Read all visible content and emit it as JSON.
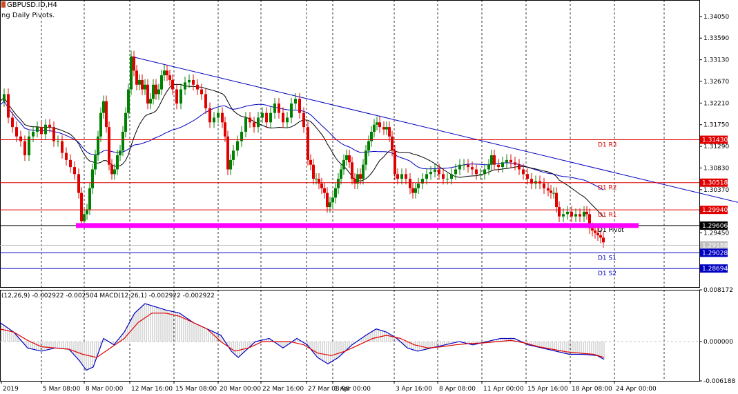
{
  "header": {
    "symbol": "GBPUSD.ID,H4",
    "indicator": "ng Daily Pivots."
  },
  "chart_data": [
    {
      "type": "candlestick",
      "symbol": "GBPUSD.ID,H4",
      "ylim": [
        1.283,
        1.344
      ],
      "y_ticks": [
        "1.34050",
        "1.33590",
        "1.33130",
        "1.32670",
        "1.32210",
        "1.31750",
        "1.31290",
        "1.30830",
        "1.30370",
        "1.29450"
      ],
      "x_ticks": [
        "2019",
        "5 Mar 08:00",
        "8 Mar 00:00",
        "12 Mar 16:00",
        "15 Mar 08:00",
        "20 Mar 00:00",
        "22 Mar 16:00",
        "27 Mar 08:00",
        "1 Apr 00:00",
        "3 Apr 16:00",
        "8 Apr 08:00",
        "11 Apr 00:00",
        "15 Apr 16:00",
        "18 Apr 08:00",
        "24 Apr 00:00"
      ],
      "close_path": [
        [
          0,
          1.3225
        ],
        [
          6,
          1.324
        ],
        [
          12,
          1.319
        ],
        [
          18,
          1.317
        ],
        [
          24,
          1.315
        ],
        [
          30,
          1.314
        ],
        [
          36,
          1.311
        ],
        [
          42,
          1.315
        ],
        [
          48,
          1.316
        ],
        [
          54,
          1.317
        ],
        [
          60,
          1.3155
        ],
        [
          66,
          1.3175
        ],
        [
          72,
          1.317
        ],
        [
          78,
          1.314
        ],
        [
          84,
          1.314
        ],
        [
          90,
          1.3115
        ],
        [
          96,
          1.31
        ],
        [
          102,
          1.3085
        ],
        [
          108,
          1.307
        ],
        [
          114,
          1.303
        ],
        [
          118,
          1.297
        ],
        [
          122,
          1.2985
        ],
        [
          126,
          1.2995
        ],
        [
          130,
          1.304
        ],
        [
          134,
          1.308
        ],
        [
          138,
          1.311
        ],
        [
          142,
          1.315
        ],
        [
          146,
          1.32
        ],
        [
          150,
          1.3225
        ],
        [
          154,
          1.317
        ],
        [
          158,
          1.309
        ],
        [
          162,
          1.307
        ],
        [
          166,
          1.308
        ],
        [
          170,
          1.311
        ],
        [
          174,
          1.312
        ],
        [
          178,
          1.316
        ],
        [
          182,
          1.32
        ],
        [
          186,
          1.325
        ],
        [
          190,
          1.332
        ],
        [
          194,
          1.329
        ],
        [
          198,
          1.326
        ],
        [
          202,
          1.327
        ],
        [
          206,
          1.325
        ],
        [
          210,
          1.326
        ],
        [
          214,
          1.322
        ],
        [
          218,
          1.323
        ],
        [
          222,
          1.326
        ],
        [
          226,
          1.324
        ],
        [
          230,
          1.325
        ],
        [
          234,
          1.328
        ],
        [
          238,
          1.329
        ],
        [
          242,
          1.328
        ],
        [
          246,
          1.327
        ],
        [
          250,
          1.325
        ],
        [
          256,
          1.322
        ],
        [
          262,
          1.325
        ],
        [
          268,
          1.3265
        ],
        [
          274,
          1.327
        ],
        [
          280,
          1.326
        ],
        [
          286,
          1.325
        ],
        [
          292,
          1.324
        ],
        [
          298,
          1.321
        ],
        [
          304,
          1.318
        ],
        [
          310,
          1.319
        ],
        [
          316,
          1.32
        ],
        [
          322,
          1.318
        ],
        [
          326,
          1.315
        ],
        [
          330,
          1.308
        ],
        [
          334,
          1.31
        ],
        [
          338,
          1.312
        ],
        [
          344,
          1.314
        ],
        [
          350,
          1.316
        ],
        [
          356,
          1.319
        ],
        [
          362,
          1.318
        ],
        [
          368,
          1.317
        ],
        [
          374,
          1.319
        ],
        [
          380,
          1.32
        ],
        [
          386,
          1.318
        ],
        [
          392,
          1.32
        ],
        [
          398,
          1.322
        ],
        [
          404,
          1.32
        ],
        [
          410,
          1.318
        ],
        [
          416,
          1.319
        ],
        [
          422,
          1.322
        ],
        [
          428,
          1.323
        ],
        [
          434,
          1.32
        ],
        [
          440,
          1.317
        ],
        [
          446,
          1.31
        ],
        [
          450,
          1.309
        ],
        [
          454,
          1.306
        ],
        [
          458,
          1.306
        ],
        [
          462,
          1.305
        ],
        [
          466,
          1.304
        ],
        [
          470,
          1.303
        ],
        [
          474,
          1.3
        ],
        [
          478,
          1.301
        ],
        [
          482,
          1.302
        ],
        [
          486,
          1.304
        ],
        [
          490,
          1.306
        ],
        [
          494,
          1.308
        ],
        [
          498,
          1.31
        ],
        [
          502,
          1.311
        ],
        [
          506,
          1.3095
        ],
        [
          510,
          1.306
        ],
        [
          514,
          1.305
        ],
        [
          518,
          1.307
        ],
        [
          522,
          1.306
        ],
        [
          526,
          1.309
        ],
        [
          530,
          1.312
        ],
        [
          534,
          1.314
        ],
        [
          538,
          1.316
        ],
        [
          542,
          1.3175
        ],
        [
          546,
          1.318
        ],
        [
          550,
          1.317
        ],
        [
          556,
          1.3165
        ],
        [
          560,
          1.317
        ],
        [
          564,
          1.315
        ],
        [
          568,
          1.312
        ],
        [
          572,
          1.307
        ],
        [
          576,
          1.306
        ],
        [
          582,
          1.307
        ],
        [
          588,
          1.306
        ],
        [
          594,
          1.304
        ],
        [
          598,
          1.303
        ],
        [
          602,
          1.304
        ],
        [
          606,
          1.305
        ],
        [
          612,
          1.306
        ],
        [
          618,
          1.307
        ],
        [
          624,
          1.3075
        ],
        [
          630,
          1.308
        ],
        [
          636,
          1.307
        ],
        [
          642,
          1.306
        ],
        [
          648,
          1.306
        ],
        [
          654,
          1.307
        ],
        [
          660,
          1.308
        ],
        [
          666,
          1.309
        ],
        [
          672,
          1.309
        ],
        [
          678,
          1.3085
        ],
        [
          684,
          1.308
        ],
        [
          690,
          1.307
        ],
        [
          696,
          1.307
        ],
        [
          702,
          1.308
        ],
        [
          708,
          1.309
        ],
        [
          712,
          1.311
        ],
        [
          716,
          1.309
        ],
        [
          722,
          1.3085
        ],
        [
          728,
          1.3095
        ],
        [
          734,
          1.31
        ],
        [
          740,
          1.3095
        ],
        [
          746,
          1.309
        ],
        [
          752,
          1.308
        ],
        [
          758,
          1.307
        ],
        [
          764,
          1.306
        ],
        [
          770,
          1.305
        ],
        [
          776,
          1.3055
        ],
        [
          782,
          1.305
        ],
        [
          788,
          1.304
        ],
        [
          794,
          1.3035
        ],
        [
          798,
          1.303
        ],
        [
          802,
          1.303
        ],
        [
          806,
          1.3
        ],
        [
          810,
          1.298
        ],
        [
          816,
          1.2985
        ],
        [
          822,
          1.299
        ],
        [
          828,
          1.298
        ],
        [
          834,
          1.2985
        ],
        [
          840,
          1.298
        ],
        [
          846,
          1.299
        ],
        [
          850,
          1.2985
        ],
        [
          854,
          1.2955
        ],
        [
          858,
          1.295
        ],
        [
          862,
          1.2945
        ],
        [
          866,
          1.294
        ],
        [
          870,
          1.2935
        ],
        [
          874,
          1.2925
        ]
      ],
      "h_lines": [
        {
          "name": "D1 R3",
          "value": 1.3143,
          "label": "1.31430",
          "color": "#e00000"
        },
        {
          "name": "D1 R2",
          "value": 1.30518,
          "label": "1.30518",
          "color": "#e00000"
        },
        {
          "name": "D1 R1",
          "value": 1.2994,
          "label": "1.29940",
          "color": "#e00000"
        },
        {
          "name": "D1 Pivot",
          "value": 1.29606,
          "label": "1.29606",
          "color": "#000000"
        },
        {
          "name": "",
          "value": 1.29188,
          "label": "1.29188",
          "color": "#c0c0c0"
        },
        {
          "name": "D1 S1",
          "value": 1.29028,
          "label": "1.29028",
          "color": "#0000c0"
        },
        {
          "name": "D1 S2",
          "value": 1.28694,
          "label": "1.28694",
          "color": "#0000c0"
        }
      ],
      "support_zone": {
        "value": 1.296,
        "color": "#ff00ff"
      },
      "trendline": {
        "from": [
          190,
          1.332
        ],
        "to": [
          1069,
          1.301
        ],
        "color": "#0000c0"
      }
    },
    {
      "type": "macd",
      "title": "(12,26,9) -0.002922 -0.002504 MACD(12,26,1) -0.002922 -0.002922",
      "ylim": [
        -0.006188,
        0.008172
      ],
      "y_ticks": [
        "0.008172",
        "0.000000",
        "-0.006188"
      ],
      "macd": [
        [
          0,
          0.003
        ],
        [
          20,
          0.0015
        ],
        [
          40,
          -0.001
        ],
        [
          60,
          -0.0015
        ],
        [
          80,
          -0.001
        ],
        [
          100,
          -0.0012
        ],
        [
          115,
          -0.003
        ],
        [
          125,
          -0.0045
        ],
        [
          135,
          -0.004
        ],
        [
          150,
          0.0005
        ],
        [
          165,
          -0.0005
        ],
        [
          180,
          0.0015
        ],
        [
          195,
          0.0045
        ],
        [
          210,
          0.006
        ],
        [
          225,
          0.0055
        ],
        [
          240,
          0.005
        ],
        [
          260,
          0.0045
        ],
        [
          280,
          0.003
        ],
        [
          300,
          0.002
        ],
        [
          320,
          0.001
        ],
        [
          335,
          -0.0015
        ],
        [
          345,
          -0.0025
        ],
        [
          355,
          -0.0015
        ],
        [
          370,
          0.0
        ],
        [
          390,
          0.0005
        ],
        [
          410,
          -0.001
        ],
        [
          430,
          0.0005
        ],
        [
          445,
          -0.0005
        ],
        [
          460,
          -0.0025
        ],
        [
          475,
          -0.0035
        ],
        [
          490,
          -0.0025
        ],
        [
          510,
          -0.0005
        ],
        [
          530,
          0.001
        ],
        [
          545,
          0.002
        ],
        [
          560,
          0.0015
        ],
        [
          575,
          0.0005
        ],
        [
          590,
          -0.001
        ],
        [
          605,
          -0.0015
        ],
        [
          625,
          -0.001
        ],
        [
          645,
          -0.0005
        ],
        [
          665,
          0.0
        ],
        [
          685,
          -0.0005
        ],
        [
          705,
          0.0
        ],
        [
          725,
          0.0005
        ],
        [
          745,
          0.0005
        ],
        [
          765,
          -0.0005
        ],
        [
          785,
          -0.001
        ],
        [
          805,
          -0.0015
        ],
        [
          825,
          -0.002
        ],
        [
          845,
          -0.002
        ],
        [
          865,
          -0.0022
        ],
        [
          875,
          -0.0028
        ]
      ],
      "signal": [
        [
          0,
          0.002
        ],
        [
          20,
          0.0015
        ],
        [
          40,
          0.0002
        ],
        [
          60,
          -0.0008
        ],
        [
          80,
          -0.001
        ],
        [
          100,
          -0.0012
        ],
        [
          120,
          -0.002
        ],
        [
          140,
          -0.0025
        ],
        [
          160,
          -0.001
        ],
        [
          180,
          0.0005
        ],
        [
          200,
          0.003
        ],
        [
          220,
          0.0045
        ],
        [
          240,
          0.0045
        ],
        [
          260,
          0.004
        ],
        [
          280,
          0.003
        ],
        [
          300,
          0.002
        ],
        [
          320,
          0.0
        ],
        [
          340,
          -0.0015
        ],
        [
          360,
          -0.001
        ],
        [
          380,
          0.0
        ],
        [
          400,
          0.0
        ],
        [
          420,
          0.0
        ],
        [
          440,
          -0.0005
        ],
        [
          460,
          -0.0018
        ],
        [
          480,
          -0.0022
        ],
        [
          500,
          -0.0015
        ],
        [
          520,
          -0.0005
        ],
        [
          540,
          0.0005
        ],
        [
          560,
          0.001
        ],
        [
          580,
          0.0005
        ],
        [
          600,
          -0.0005
        ],
        [
          620,
          -0.001
        ],
        [
          640,
          -0.0008
        ],
        [
          660,
          -0.0005
        ],
        [
          680,
          -0.0003
        ],
        [
          700,
          -0.0002
        ],
        [
          720,
          0.0
        ],
        [
          740,
          0.0002
        ],
        [
          760,
          -0.0002
        ],
        [
          780,
          -0.0008
        ],
        [
          800,
          -0.0012
        ],
        [
          820,
          -0.0016
        ],
        [
          840,
          -0.0018
        ],
        [
          860,
          -0.002
        ],
        [
          875,
          -0.0025
        ]
      ]
    }
  ],
  "colors": {
    "up": "#008000",
    "down": "#e00000",
    "macd": "#0000c0",
    "signal": "#e00000",
    "ma_long": "#0000c0",
    "ma_short": "#000000"
  }
}
